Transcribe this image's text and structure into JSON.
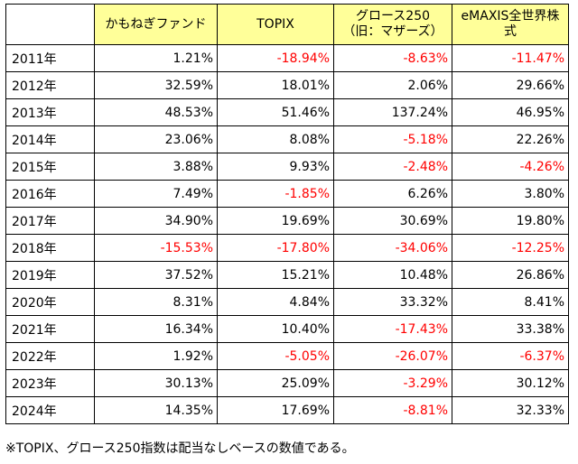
{
  "table": {
    "headers": {
      "corner": "",
      "col1": "かもねぎファンド",
      "col2": "TOPIX",
      "col3_line1": "グロース250",
      "col3_line2": "（旧：マザーズ）",
      "col4_line1": "eMAXIS全世界株",
      "col4_line2": "式"
    },
    "rows": [
      {
        "year": "2011年",
        "values": [
          "1.21%",
          "-18.94%",
          "-8.63%",
          "-11.47%"
        ]
      },
      {
        "year": "2012年",
        "values": [
          "32.59%",
          "18.01%",
          "2.06%",
          "29.66%"
        ]
      },
      {
        "year": "2013年",
        "values": [
          "48.53%",
          "51.46%",
          "137.24%",
          "46.95%"
        ]
      },
      {
        "year": "2014年",
        "values": [
          "23.06%",
          "8.08%",
          "-5.18%",
          "22.26%"
        ]
      },
      {
        "year": "2015年",
        "values": [
          "3.88%",
          "9.93%",
          "-2.48%",
          "-4.26%"
        ]
      },
      {
        "year": "2016年",
        "values": [
          "7.49%",
          "-1.85%",
          "6.26%",
          "3.80%"
        ]
      },
      {
        "year": "2017年",
        "values": [
          "34.90%",
          "19.69%",
          "30.69%",
          "19.80%"
        ]
      },
      {
        "year": "2018年",
        "values": [
          "-15.53%",
          "-17.80%",
          "-34.06%",
          "-12.25%"
        ]
      },
      {
        "year": "2019年",
        "values": [
          "37.52%",
          "15.21%",
          "10.48%",
          "26.86%"
        ]
      },
      {
        "year": "2020年",
        "values": [
          "8.31%",
          "4.84%",
          "33.32%",
          "8.41%"
        ]
      },
      {
        "year": "2021年",
        "values": [
          "16.34%",
          "10.40%",
          "-17.43%",
          "33.38%"
        ]
      },
      {
        "year": "2022年",
        "values": [
          "1.92%",
          "-5.05%",
          "-26.07%",
          "-6.37%"
        ]
      },
      {
        "year": "2023年",
        "values": [
          "30.13%",
          "25.09%",
          "-3.29%",
          "30.12%"
        ]
      },
      {
        "year": "2024年",
        "values": [
          "14.35%",
          "17.69%",
          "-8.81%",
          "32.33%"
        ]
      }
    ]
  },
  "footnote": "※TOPIX、グロース250指数は配当なしベースの数値である。",
  "colors": {
    "header_background": "#ffff99",
    "negative_text": "#ff0000",
    "positive_text": "#000000"
  }
}
